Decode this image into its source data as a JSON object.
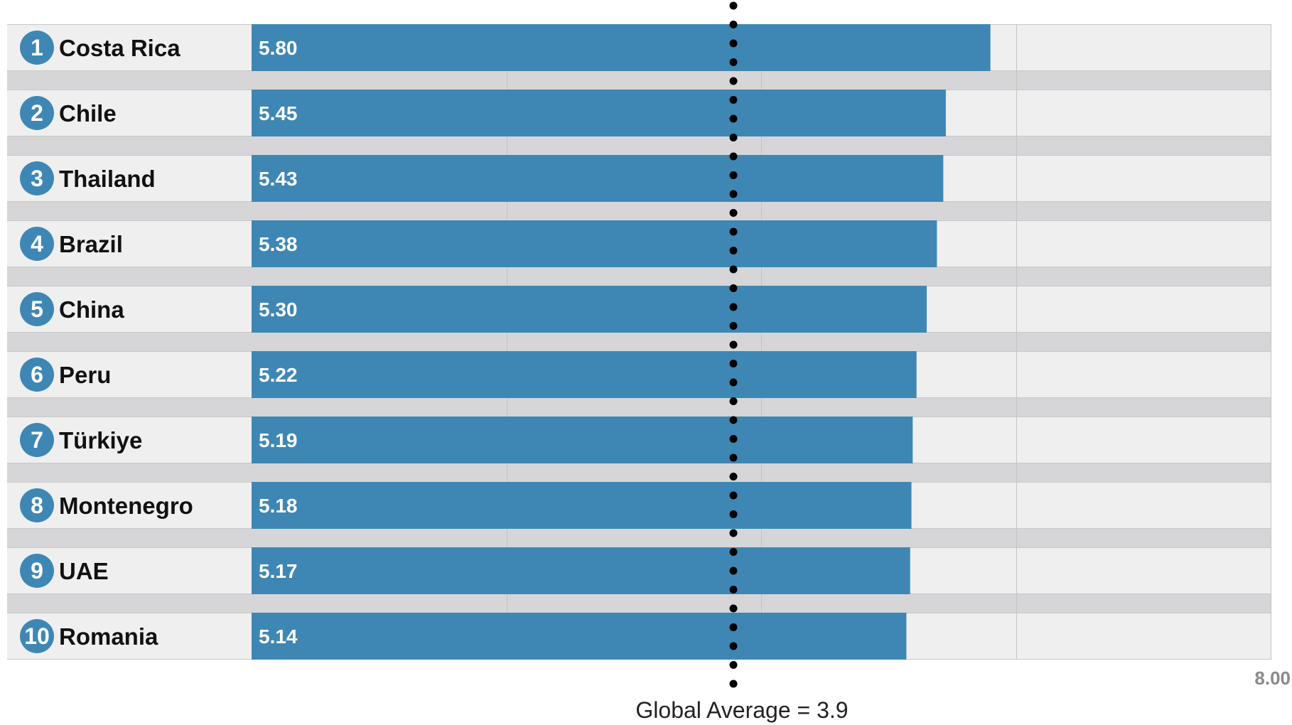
{
  "chart_data": {
    "type": "bar",
    "orientation": "horizontal",
    "categories": [
      "Costa Rica",
      "Chile",
      "Thailand",
      "Brazil",
      "China",
      "Peru",
      "Türkiye",
      "Montenegro",
      "UAE",
      "Romania"
    ],
    "ranks": [
      "1",
      "2",
      "3",
      "4",
      "5",
      "6",
      "7",
      "8",
      "9",
      "10"
    ],
    "values": [
      5.8,
      5.45,
      5.43,
      5.38,
      5.3,
      5.22,
      5.19,
      5.18,
      5.17,
      5.14
    ],
    "value_labels": [
      "5.80",
      "5.45",
      "5.43",
      "5.38",
      "5.30",
      "5.22",
      "5.19",
      "5.18",
      "5.17",
      "5.14"
    ],
    "xlim": [
      0,
      8
    ],
    "x_tick_labels": [
      "8.00"
    ],
    "reference_line": {
      "value": 3.9,
      "label": "Global Average = 3.9",
      "style": "dotted"
    },
    "grid": true,
    "colors": {
      "bar": "#3e87b5",
      "badge": "#3e87b5",
      "row_background": "#efefef",
      "separator": "#d6d6d8",
      "gridline": "#c4c4c4",
      "reference_line": "#000000"
    }
  }
}
